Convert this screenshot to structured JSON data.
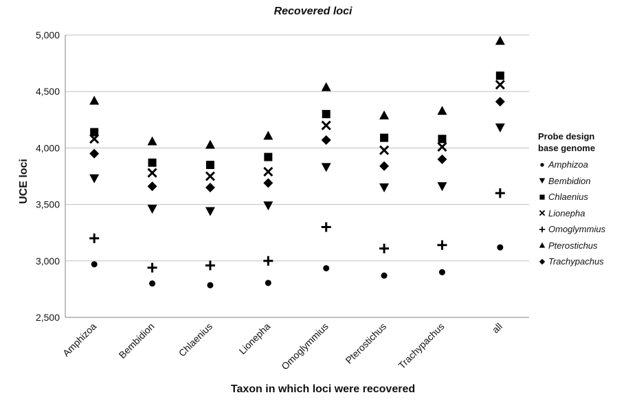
{
  "chart_data": {
    "type": "scatter",
    "title": "Recovered loci",
    "xlabel": "Taxon in which loci were recovered",
    "ylabel": "UCE loci",
    "categories": [
      "Amphizoa",
      "Bembidion",
      "Chlaenius",
      "Lionepha",
      "Omoglymmius",
      "Pterostichus",
      "Trachypachus",
      "all"
    ],
    "ylim": [
      2500,
      5000
    ],
    "yticks": [
      2500,
      3000,
      3500,
      4000,
      4500,
      5000
    ],
    "ytick_labels": [
      "2,500",
      "3,000",
      "3,500",
      "4,000",
      "4,500",
      "5,000"
    ],
    "grid": "horizontal",
    "legend": {
      "placement": "right",
      "title_lines": [
        "Probe design",
        "base genome"
      ]
    },
    "series": [
      {
        "name": "Amphizoa",
        "marker": "circle",
        "values": [
          2970,
          2800,
          2785,
          2805,
          2935,
          2870,
          2900,
          3120
        ]
      },
      {
        "name": "Bembidion",
        "marker": "triangle-down",
        "values": [
          3730,
          3460,
          3440,
          3490,
          3830,
          3650,
          3660,
          4180
        ]
      },
      {
        "name": "Chlaenius",
        "marker": "square",
        "values": [
          4140,
          3870,
          3850,
          3920,
          4300,
          4090,
          4080,
          4640
        ]
      },
      {
        "name": "Lionepha",
        "marker": "x",
        "values": [
          4080,
          3780,
          3750,
          3790,
          4200,
          3980,
          4010,
          4560
        ]
      },
      {
        "name": "Omoglymmius",
        "marker": "plus",
        "values": [
          3200,
          2940,
          2960,
          3000,
          3300,
          3110,
          3140,
          3600
        ]
      },
      {
        "name": "Pterostichus",
        "marker": "triangle-up",
        "values": [
          4420,
          4060,
          4030,
          4110,
          4540,
          4290,
          4330,
          4950
        ]
      },
      {
        "name": "Trachypachus",
        "marker": "diamond",
        "values": [
          3950,
          3660,
          3650,
          3690,
          4070,
          3840,
          3900,
          4410
        ]
      }
    ],
    "colors": {
      "marker": "#000000",
      "grid": "#bfbfbf",
      "axis": "#808080"
    }
  }
}
